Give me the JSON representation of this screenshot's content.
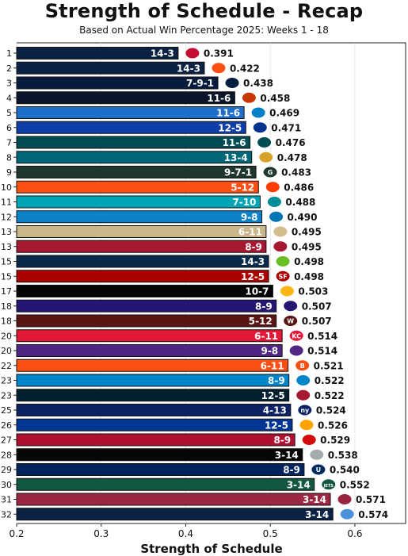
{
  "title": "Strength of Schedule - Recap",
  "subtitle": "Based on Actual Win Percentage 2025: Weeks 1 - 18",
  "chart_data": {
    "type": "bar",
    "orientation": "horizontal",
    "xlabel": "Strength of Schedule",
    "xlim": [
      0.2,
      0.66
    ],
    "xticks": [
      "0.2",
      "0.3",
      "0.4",
      "0.5",
      "0.6"
    ],
    "grid": "vertical",
    "ranks": [
      "1",
      "2",
      "3",
      "4",
      "5",
      "6",
      "7",
      "8",
      "9",
      "10",
      "11",
      "12",
      "13",
      "13",
      "15",
      "15",
      "17",
      "18",
      "18",
      "20",
      "20",
      "22",
      "23",
      "23",
      "25",
      "26",
      "27",
      "28",
      "29",
      "30",
      "31",
      "32"
    ],
    "records": [
      "14-3",
      "14-3",
      "7-9-1",
      "11-6",
      "11-6",
      "12-5",
      "11-6",
      "13-4",
      "9-7-1",
      "5-12",
      "7-10",
      "9-8",
      "6-11",
      "8-9",
      "14-3",
      "12-5",
      "10-7",
      "8-9",
      "5-12",
      "6-11",
      "9-8",
      "6-11",
      "8-9",
      "12-5",
      "4-13",
      "12-5",
      "8-9",
      "3-14",
      "8-9",
      "3-14",
      "3-14",
      "3-14"
    ],
    "values": [
      0.391,
      0.422,
      0.438,
      0.458,
      0.469,
      0.471,
      0.476,
      0.478,
      0.483,
      0.486,
      0.488,
      0.49,
      0.495,
      0.495,
      0.498,
      0.498,
      0.503,
      0.507,
      0.507,
      0.514,
      0.514,
      0.521,
      0.522,
      0.522,
      0.524,
      0.526,
      0.529,
      0.538,
      0.54,
      0.552,
      0.571,
      0.574
    ],
    "value_labels": [
      "0.391",
      "0.422",
      "0.438",
      "0.458",
      "0.469",
      "0.471",
      "0.476",
      "0.478",
      "0.483",
      "0.486",
      "0.488",
      "0.490",
      "0.495",
      "0.495",
      "0.498",
      "0.498",
      "0.503",
      "0.507",
      "0.507",
      "0.514",
      "0.514",
      "0.521",
      "0.522",
      "0.522",
      "0.524",
      "0.526",
      "0.529",
      "0.538",
      "0.540",
      "0.552",
      "0.571",
      "0.574"
    ],
    "colors": [
      "#0b2245",
      "#0b2245",
      "#061c3d",
      "#0b162a",
      "#1e6fc9",
      "#0e3ea8",
      "#004c54",
      "#006778",
      "#203731",
      "#fb4f14",
      "#00a5b5",
      "#0d82c9",
      "#c9b689",
      "#a71930",
      "#082a4a",
      "#aa0000",
      "#050505",
      "#241773",
      "#5a1414",
      "#e31837",
      "#4f2683",
      "#fb4f14",
      "#0085ca",
      "#03202f",
      "#0b2265",
      "#003594",
      "#b01030",
      "#070707",
      "#00245d",
      "#125740",
      "#9b2743",
      "#0b2245"
    ],
    "logos": [
      "patriots-logo",
      "broncos-logo",
      "cowboys-logo",
      "bears-logo",
      "chargers-logo",
      "bills-logo",
      "eagles-logo",
      "jaguars-logo",
      "packers-logo",
      "browns-logo",
      "dolphins-logo",
      "lions-logo",
      "saints-logo",
      "falcons-logo",
      "seahawks-logo",
      "49ers-logo",
      "steelers-logo",
      "ravens-logo",
      "commanders-logo",
      "chiefs-logo",
      "vikings-logo",
      "bengals-logo",
      "panthers-logo",
      "texans-logo",
      "giants-logo",
      "rams-logo",
      "buccaneers-logo",
      "raiders-logo",
      "colts-logo",
      "jets-logo",
      "cardinals-logo",
      "titans-logo"
    ],
    "logo_colors": [
      "#c60c30",
      "#fb4f14",
      "#041e42",
      "#c83803",
      "#0080c6",
      "#00338d",
      "#004c54",
      "#d7a22a",
      "#203731",
      "#ff3c00",
      "#008e97",
      "#0076b6",
      "#d3bc8d",
      "#a71930",
      "#69be28",
      "#aa0000",
      "#ffb612",
      "#241773",
      "#5a1414",
      "#e31837",
      "#4f2683",
      "#fb4f14",
      "#0085ca",
      "#a71930",
      "#0b2265",
      "#ffa300",
      "#d50a0a",
      "#a5acaf",
      "#002c5f",
      "#125740",
      "#97233f",
      "#4b92db"
    ],
    "logo_text": [
      "",
      "",
      "",
      "",
      "",
      "",
      "",
      "",
      "G",
      "",
      "",
      "",
      "",
      "",
      "",
      "SF",
      "",
      "",
      "W",
      "KC",
      "",
      "B",
      "",
      "",
      "ny",
      "",
      "",
      "",
      "U",
      "JETS",
      "",
      ""
    ]
  }
}
